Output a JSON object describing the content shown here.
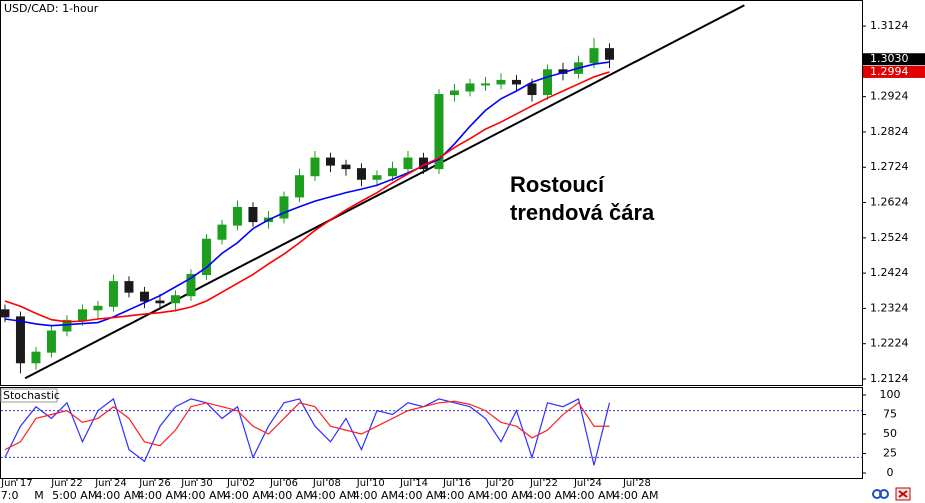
{
  "chart_data": {
    "type": "candlestick",
    "title": "USD/CAD: 1-hour",
    "up_color": "#1e9e1e",
    "down_color": "#1a1a1a",
    "open": [
      1.232,
      1.23,
      1.217,
      1.22,
      1.226,
      1.229,
      1.232,
      1.233,
      1.24,
      1.237,
      1.2345,
      1.234,
      1.236,
      1.242,
      1.252,
      1.256,
      1.261,
      1.257,
      1.258,
      1.264,
      1.27,
      1.275,
      1.273,
      1.272,
      1.269,
      1.27,
      1.272,
      1.275,
      1.272,
      1.293,
      1.294,
      1.296,
      1.296,
      1.297,
      1.296,
      1.293,
      1.3,
      1.299,
      1.302,
      1.306
    ],
    "high": [
      1.2335,
      1.2315,
      1.2215,
      1.2275,
      1.2305,
      1.2335,
      1.2345,
      1.242,
      1.2415,
      1.2385,
      1.2365,
      1.2375,
      1.2435,
      1.2535,
      1.2575,
      1.263,
      1.2625,
      1.26,
      1.2655,
      1.272,
      1.277,
      1.2765,
      1.2745,
      1.2735,
      1.2715,
      1.274,
      1.277,
      1.2765,
      1.2945,
      1.296,
      1.2975,
      1.298,
      1.299,
      1.2985,
      1.2975,
      1.3015,
      1.302,
      1.304,
      1.309,
      1.3075
    ],
    "low": [
      1.2285,
      1.214,
      1.215,
      1.2185,
      1.2245,
      1.2275,
      1.2295,
      1.2315,
      1.2355,
      1.2325,
      1.232,
      1.2315,
      1.2345,
      1.2405,
      1.2505,
      1.2545,
      1.2555,
      1.255,
      1.2565,
      1.2625,
      1.2685,
      1.271,
      1.27,
      1.267,
      1.267,
      1.2685,
      1.2705,
      1.2705,
      1.2705,
      1.291,
      1.2925,
      1.294,
      1.2945,
      1.294,
      1.291,
      1.2915,
      1.297,
      1.2975,
      1.3005,
      1.3005
    ],
    "close": [
      1.23,
      1.217,
      1.22,
      1.226,
      1.229,
      1.232,
      1.233,
      1.24,
      1.237,
      1.2345,
      1.234,
      1.236,
      1.242,
      1.252,
      1.256,
      1.261,
      1.257,
      1.258,
      1.264,
      1.27,
      1.275,
      1.273,
      1.272,
      1.269,
      1.27,
      1.272,
      1.275,
      1.272,
      1.293,
      1.294,
      1.296,
      1.296,
      1.297,
      1.296,
      1.293,
      1.3,
      1.299,
      1.302,
      1.306,
      1.303
    ],
    "lines": [
      {
        "color": "#0000ff",
        "values": [
          1.2294,
          1.2288,
          1.228,
          1.2275,
          1.2278,
          1.2281,
          1.2284,
          1.23,
          1.232,
          1.234,
          1.236,
          1.2385,
          1.241,
          1.244,
          1.248,
          1.251,
          1.255,
          1.2575,
          1.2595,
          1.2612,
          1.2628,
          1.264,
          1.2652,
          1.2662,
          1.2673,
          1.269,
          1.2708,
          1.2728,
          1.2746,
          1.279,
          1.284,
          1.2885,
          1.2918,
          1.294,
          1.2965,
          1.298,
          1.2992,
          1.3005,
          1.3016,
          1.3022
        ]
      },
      {
        "color": "#ff0000",
        "values": [
          1.2345,
          1.233,
          1.231,
          1.2292,
          1.2286,
          1.2288,
          1.2294,
          1.2298,
          1.2303,
          1.2308,
          1.2312,
          1.2318,
          1.2328,
          1.2345,
          1.237,
          1.2395,
          1.242,
          1.245,
          1.2478,
          1.251,
          1.2545,
          1.2575,
          1.2603,
          1.2628,
          1.2652,
          1.268,
          1.2705,
          1.273,
          1.275,
          1.278,
          1.2805,
          1.2832,
          1.2852,
          1.2875,
          1.2898,
          1.292,
          1.294,
          1.296,
          1.298,
          1.2994
        ]
      }
    ],
    "trendline": {
      "x": [
        1.3,
        47.7
      ],
      "y": [
        1.2126,
        1.3183
      ],
      "color": "#000000"
    },
    "annotation": [
      "Rostoucí",
      "trendová čára"
    ],
    "xlim": [
      -0.32,
      55.29
    ],
    "ylim": [
      1.2107,
      1.3195
    ],
    "yticks": [
      1.2124,
      1.2224,
      1.2324,
      1.2424,
      1.2524,
      1.2624,
      1.2724,
      1.2824,
      1.2924,
      1.3124
    ],
    "price_labels": [
      {
        "value": 1.303,
        "label": "1.3030",
        "color": "#000000"
      },
      {
        "value": 1.2994,
        "label": "1.2994",
        "color": "#e00000"
      }
    ],
    "xticks": [
      {
        "value": 0.77,
        "label": "Jun 17"
      },
      {
        "value": 4.0,
        "label": "Jun 22"
      },
      {
        "value": 6.84,
        "label": "Jun 24"
      },
      {
        "value": 9.68,
        "label": "Jun 26"
      },
      {
        "value": 12.39,
        "label": "Jun 30"
      },
      {
        "value": 15.23,
        "label": "Jul 02"
      },
      {
        "value": 18.0,
        "label": "Jul 06"
      },
      {
        "value": 20.77,
        "label": "Jul 08"
      },
      {
        "value": 23.6,
        "label": "Jul 10"
      },
      {
        "value": 26.39,
        "label": "Jul 14"
      },
      {
        "value": 29.16,
        "label": "Jul 16"
      },
      {
        "value": 31.94,
        "label": "Jul 20"
      },
      {
        "value": 34.77,
        "label": "Jul 22"
      },
      {
        "value": 37.61,
        "label": "Jul 24"
      },
      {
        "value": 40.77,
        "label": "Jul 28"
      }
    ],
    "xticks2": [
      {
        "value": 0.3,
        "label": "7:0"
      },
      {
        "value": 2.2,
        "label": "M"
      },
      {
        "value": 4.5,
        "label": "5:00 AM"
      },
      {
        "value": 7.3,
        "label": "4:00 AM"
      },
      {
        "value": 10.0,
        "label": "4:00 AM"
      },
      {
        "value": 12.8,
        "label": "4:00 AM"
      },
      {
        "value": 15.6,
        "label": "4:00 AM"
      },
      {
        "value": 18.4,
        "label": "4:00 AM"
      },
      {
        "value": 21.2,
        "label": "4:00 AM"
      },
      {
        "value": 23.9,
        "label": "4:00 AM"
      },
      {
        "value": 26.8,
        "label": "4:00 AM"
      },
      {
        "value": 29.5,
        "label": "4:00 AM"
      },
      {
        "value": 32.3,
        "label": "4:00 AM"
      },
      {
        "value": 35.1,
        "label": "4:00 AM"
      },
      {
        "value": 37.9,
        "label": "4:00 AM"
      },
      {
        "value": 40.7,
        "label": "4:00 AM"
      }
    ],
    "stochastic": {
      "title": "Stochastic",
      "ylim": [
        -6.4,
        109
      ],
      "yticks": [
        0,
        25,
        50,
        75,
        100
      ],
      "levels": [
        20,
        80
      ],
      "level_color": "#3a3adc",
      "k": {
        "color": "#3030ff",
        "values": [
          20,
          60,
          85,
          70,
          90,
          40,
          80,
          95,
          30,
          15,
          60,
          85,
          95,
          90,
          70,
          85,
          20,
          60,
          90,
          95,
          60,
          40,
          70,
          30,
          80,
          75,
          90,
          85,
          95,
          90,
          85,
          70,
          40,
          80,
          20,
          90,
          85,
          95,
          10,
          90
        ]
      },
      "d": {
        "color": "#ff2020",
        "values": [
          30,
          40,
          70,
          75,
          80,
          65,
          70,
          85,
          70,
          40,
          35,
          55,
          85,
          90,
          85,
          80,
          60,
          50,
          70,
          90,
          85,
          60,
          55,
          50,
          60,
          70,
          80,
          85,
          90,
          92,
          88,
          80,
          65,
          60,
          45,
          55,
          75,
          90,
          60,
          60
        ]
      }
    }
  }
}
